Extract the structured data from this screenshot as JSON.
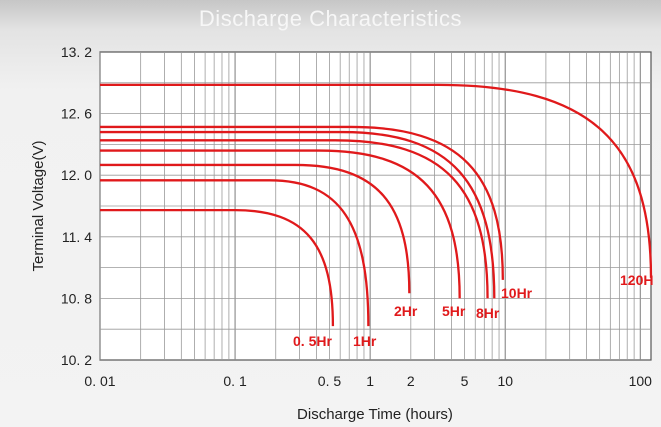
{
  "chart_data": {
    "type": "line",
    "title": "Discharge Characteristics",
    "xlabel": "Discharge Time (hours)",
    "ylabel": "Terminal Voltage(V)",
    "x_scale": "log",
    "xlim": [
      0.01,
      120
    ],
    "ylim": [
      10.2,
      13.2
    ],
    "grid": true,
    "x_ticks": [
      0.01,
      0.1,
      0.5,
      1,
      2,
      5,
      10,
      100
    ],
    "x_tick_labels": [
      "0. 01",
      "0. 1",
      "0. 5",
      "1",
      "2",
      "5",
      "10",
      "100"
    ],
    "y_ticks": [
      10.2,
      10.8,
      11.4,
      12.0,
      12.6,
      13.2
    ],
    "y_tick_labels": [
      "10. 2",
      "10. 8",
      "11. 4",
      "12. 0",
      "12. 6",
      "13. 2"
    ],
    "line_color": "#e0191b",
    "series": [
      {
        "name": "0. 5Hr",
        "plateau_v": 11.66,
        "knee_h": 0.1,
        "end_h": 0.53,
        "end_v": 10.53
      },
      {
        "name": "1Hr",
        "plateau_v": 11.95,
        "knee_h": 0.18,
        "end_h": 0.97,
        "end_v": 10.53
      },
      {
        "name": "2Hr",
        "plateau_v": 12.1,
        "knee_h": 0.28,
        "end_h": 1.95,
        "end_v": 10.85
      },
      {
        "name": "5Hr",
        "plateau_v": 12.24,
        "knee_h": 0.42,
        "end_h": 4.6,
        "end_v": 10.8
      },
      {
        "name": "8Hr",
        "plateau_v": 12.34,
        "knee_h": 0.55,
        "end_h": 7.4,
        "end_v": 10.8
      },
      {
        "name": "10Hr",
        "plateau_v": 12.42,
        "knee_h": 0.62,
        "end_h": 8.3,
        "end_v": 10.8
      },
      {
        "name": "10Hr",
        "plateau_v": 12.47,
        "knee_h": 0.72,
        "end_h": 9.6,
        "end_v": 10.98
      },
      {
        "name": "120H",
        "plateau_v": 12.88,
        "knee_h": 3.2,
        "end_h": 120,
        "end_v": 11.0
      }
    ]
  }
}
